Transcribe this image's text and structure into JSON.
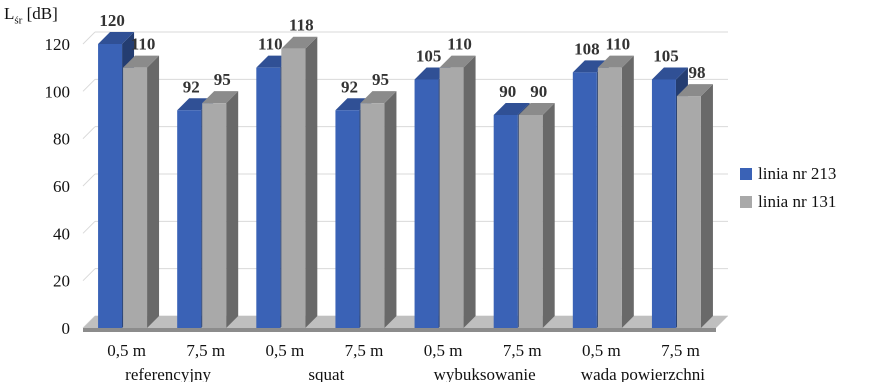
{
  "chart_data": {
    "type": "bar",
    "ylabel_main": "L",
    "ylabel_sub": "śr",
    "ylabel_unit": "[dB]",
    "ylim": [
      0,
      120
    ],
    "yticks": [
      "0",
      "20",
      "40",
      "60",
      "80",
      "100",
      "120"
    ],
    "categories": [
      "0,5 m",
      "7,5 m",
      "0,5 m",
      "7,5 m",
      "0,5 m",
      "7,5 m",
      "0,5 m",
      "7,5 m"
    ],
    "groups": [
      "referencyjny",
      "squat",
      "wybuksowanie",
      "wada powierzchni"
    ],
    "grid": true,
    "legend_position": "right",
    "series": [
      {
        "name": "linia nr 213",
        "color": "#3a62b6",
        "values": [
          120,
          92,
          110,
          92,
          105,
          90,
          108,
          105
        ]
      },
      {
        "name": "linia nr 131",
        "color": "#a9a9a9",
        "values": [
          110,
          95,
          118,
          95,
          110,
          90,
          110,
          98
        ]
      }
    ]
  }
}
